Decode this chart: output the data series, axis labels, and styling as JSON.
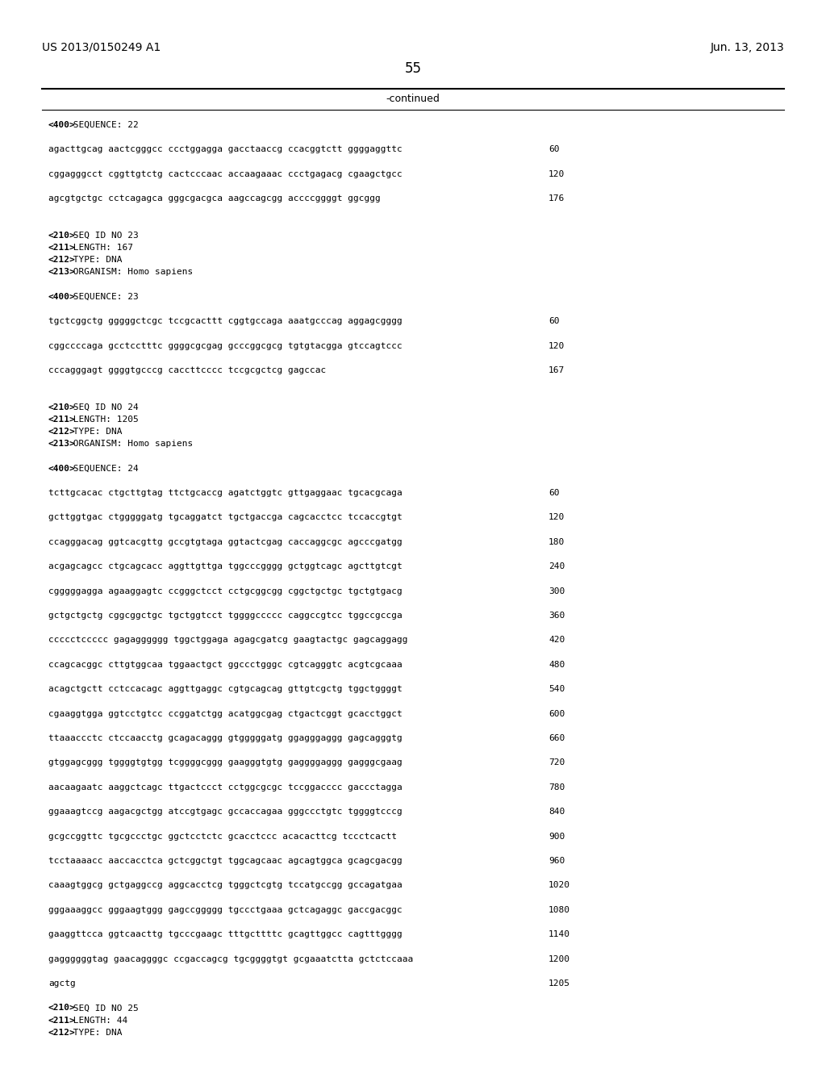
{
  "header_left": "US 2013/0150249 A1",
  "header_right": "Jun. 13, 2013",
  "page_number": "55",
  "continued_label": "-continued",
  "background_color": "#ffffff",
  "text_color": "#000000",
  "lines": [
    {
      "text": "<400> SEQUENCE: 22",
      "bold_prefix": "<400>"
    },
    {
      "text": ""
    },
    {
      "text": "agacttgcag aactcgggcc ccctggagga gacctaaccg ccacggtctt ggggaggttc",
      "number": "60"
    },
    {
      "text": ""
    },
    {
      "text": "cggagggcct cggttgtctg cactcccaac accaagaaac ccctgagacg cgaagctgcc",
      "number": "120"
    },
    {
      "text": ""
    },
    {
      "text": "agcgtgctgc cctcagagca gggcgacgca aagccagcgg accccggggt ggcggg",
      "number": "176"
    },
    {
      "text": ""
    },
    {
      "text": ""
    },
    {
      "text": "<210> SEQ ID NO 23",
      "bold_prefix": "<210>"
    },
    {
      "text": "<211> LENGTH: 167",
      "bold_prefix": "<211>"
    },
    {
      "text": "<212> TYPE: DNA",
      "bold_prefix": "<212>"
    },
    {
      "text": "<213> ORGANISM: Homo sapiens",
      "bold_prefix": "<213>"
    },
    {
      "text": ""
    },
    {
      "text": "<400> SEQUENCE: 23",
      "bold_prefix": "<400>"
    },
    {
      "text": ""
    },
    {
      "text": "tgctcggctg gggggctcgc tccgcacttt cggtgccaga aaatgcccag aggagcgggg",
      "number": "60"
    },
    {
      "text": ""
    },
    {
      "text": "cggccccaga gcctcctttc ggggcgcgag gcccggcgcg tgtgtacgga gtccagtccc",
      "number": "120"
    },
    {
      "text": ""
    },
    {
      "text": "cccagggagt ggggtgcccg caccttcccc tccgcgctcg gagccac",
      "number": "167"
    },
    {
      "text": ""
    },
    {
      "text": ""
    },
    {
      "text": "<210> SEQ ID NO 24",
      "bold_prefix": "<210>"
    },
    {
      "text": "<211> LENGTH: 1205",
      "bold_prefix": "<211>"
    },
    {
      "text": "<212> TYPE: DNA",
      "bold_prefix": "<212>"
    },
    {
      "text": "<213> ORGANISM: Homo sapiens",
      "bold_prefix": "<213>"
    },
    {
      "text": ""
    },
    {
      "text": "<400> SEQUENCE: 24",
      "bold_prefix": "<400>"
    },
    {
      "text": ""
    },
    {
      "text": "tcttgcacac ctgcttgtag ttctgcaccg agatctggtc gttgaggaac tgcacgcaga",
      "number": "60"
    },
    {
      "text": ""
    },
    {
      "text": "gcttggtgac ctgggggatg tgcaggatct tgctgaccga cagcacctcc tccaccgtgt",
      "number": "120"
    },
    {
      "text": ""
    },
    {
      "text": "ccagggacag ggtcacgttg gccgtgtaga ggtactcgag caccaggcgc agcccgatgg",
      "number": "180"
    },
    {
      "text": ""
    },
    {
      "text": "acgagcagcc ctgcagcacc aggttgttga tggcccgggg gctggtcagc agcttgtcgt",
      "number": "240"
    },
    {
      "text": ""
    },
    {
      "text": "cgggggagga agaaggagtc ccgggctcct cctgcggcgg cggctgctgc tgctgtgacg",
      "number": "300"
    },
    {
      "text": ""
    },
    {
      "text": "gctgctgctg cggcggctgc tgctggtcct tggggccccc caggccgtcc tggccgccga",
      "number": "360"
    },
    {
      "text": ""
    },
    {
      "text": "ccccctccccc gagagggggg tggctggaga agagcgatcg gaagtactgc gagcaggagg",
      "number": "420"
    },
    {
      "text": ""
    },
    {
      "text": "ccagcacggc cttgtggcaa tggaactgct ggccctgggc cgtcagggtc acgtcgcaaa",
      "number": "480"
    },
    {
      "text": ""
    },
    {
      "text": "acagctgctt cctccacagc aggttgaggc cgtgcagcag gttgtcgctg tggctggggt",
      "number": "540"
    },
    {
      "text": ""
    },
    {
      "text": "cgaaggtgga ggtcctgtcc ccggatctgg acatggcgag ctgactcggt gcacctggct",
      "number": "600"
    },
    {
      "text": ""
    },
    {
      "text": "ttaaaccctc ctccaacctg gcagacaggg gtgggggatg ggagggaggg gagcagggtg",
      "number": "660"
    },
    {
      "text": ""
    },
    {
      "text": "gtggagcggg tggggtgtgg tcggggcggg gaagggtgtg gaggggaggg gagggcgaag",
      "number": "720"
    },
    {
      "text": ""
    },
    {
      "text": "aacaagaatc aaggctcagc ttgactccct cctggcgcgc tccggacccc gaccctagga",
      "number": "780"
    },
    {
      "text": ""
    },
    {
      "text": "ggaaagtccg aagacgctgg atccgtgagc gccaccagaa gggccctgtc tggggtcccg",
      "number": "840"
    },
    {
      "text": ""
    },
    {
      "text": "gcgccggttc tgcgccctgc ggctcctctc gcacctccc acacacttcg tccctcactt",
      "number": "900"
    },
    {
      "text": ""
    },
    {
      "text": "tcctaaaacc aaccacctca gctcggctgt tggcagcaac agcagtggca gcagcgacgg",
      "number": "960"
    },
    {
      "text": ""
    },
    {
      "text": "caaagtggcg gctgaggccg aggcacctcg tgggctcgtg tccatgccgg gccagatgaa",
      "number": "1020"
    },
    {
      "text": ""
    },
    {
      "text": "gggaaaggcc gggaagtggg gagccggggg tgccctgaaa gctcagaggc gaccgacggc",
      "number": "1080"
    },
    {
      "text": ""
    },
    {
      "text": "gaaggttcca ggtcaacttg tgcccgaagc tttgcttttc gcagttggcc cagtttgggg",
      "number": "1140"
    },
    {
      "text": ""
    },
    {
      "text": "gaggggggtag gaacaggggc ccgaccagcg tgcggggtgt gcgaaatctta gctctccaaa",
      "number": "1200"
    },
    {
      "text": ""
    },
    {
      "text": "agctg",
      "number": "1205"
    },
    {
      "text": ""
    },
    {
      "text": "<210> SEQ ID NO 25",
      "bold_prefix": "<210>"
    },
    {
      "text": "<211> LENGTH: 44",
      "bold_prefix": "<211>"
    },
    {
      "text": "<212> TYPE: DNA",
      "bold_prefix": "<212>"
    }
  ]
}
